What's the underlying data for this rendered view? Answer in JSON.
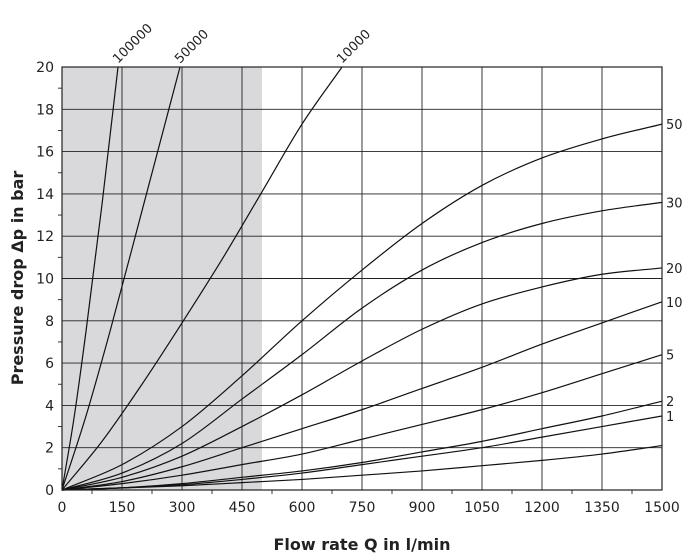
{
  "chart_data": {
    "type": "line",
    "title": "",
    "xlabel": "Flow rate Q in l/min",
    "ylabel": "Pressure drop Δp in bar",
    "xlim": [
      0,
      1500
    ],
    "ylim": [
      0,
      20
    ],
    "x_ticks": [
      0,
      150,
      300,
      450,
      600,
      750,
      900,
      1050,
      1200,
      1350,
      1500
    ],
    "y_ticks": [
      0,
      2,
      4,
      6,
      8,
      10,
      12,
      14,
      16,
      18,
      20
    ],
    "x_tick_labels": [
      "0",
      "150",
      "300",
      "450",
      "600",
      "750",
      "900",
      "1050",
      "1200",
      "1350",
      "1500"
    ],
    "y_tick_labels": [
      "0",
      "2",
      "4",
      "6",
      "8",
      "10",
      "12",
      "14",
      "16",
      "18",
      "20"
    ],
    "grid": true,
    "shaded_region": {
      "x": [
        0,
        500
      ],
      "color": "#d9d9db"
    },
    "colors": {
      "curve": "#111111",
      "grid": "#222222",
      "shade": "#d9d9db"
    },
    "series": [
      {
        "name": "100000",
        "label_position": "top",
        "x": [
          0,
          30,
          60,
          100,
          140
        ],
        "y": [
          0,
          3.4,
          7.5,
          13.5,
          20
        ]
      },
      {
        "name": "50000",
        "label_position": "top",
        "x": [
          0,
          60,
          120,
          200,
          295
        ],
        "y": [
          0,
          3.5,
          7.5,
          13.2,
          20
        ]
      },
      {
        "name": "10000",
        "label_position": "top",
        "x": [
          0,
          100,
          200,
          300,
          400,
          500,
          600,
          700
        ],
        "y": [
          0,
          2.3,
          5.0,
          7.9,
          10.9,
          14.1,
          17.3,
          20
        ]
      },
      {
        "name": "50",
        "label_position": "right",
        "x": [
          0,
          150,
          300,
          450,
          600,
          750,
          900,
          1050,
          1200,
          1350,
          1500
        ],
        "y": [
          0,
          1.2,
          3.0,
          5.4,
          8.0,
          10.4,
          12.6,
          14.4,
          15.7,
          16.6,
          17.3
        ]
      },
      {
        "name": "30",
        "label_position": "right",
        "x": [
          0,
          150,
          300,
          450,
          600,
          750,
          900,
          1050,
          1200,
          1350,
          1500
        ],
        "y": [
          0,
          0.8,
          2.2,
          4.3,
          6.4,
          8.6,
          10.4,
          11.7,
          12.6,
          13.2,
          13.6
        ]
      },
      {
        "name": "20",
        "label_position": "right",
        "x": [
          0,
          150,
          300,
          450,
          600,
          750,
          900,
          1050,
          1200,
          1350,
          1500
        ],
        "y": [
          0,
          0.6,
          1.6,
          3.0,
          4.5,
          6.1,
          7.6,
          8.8,
          9.6,
          10.2,
          10.5
        ]
      },
      {
        "name": "10",
        "label_position": "right",
        "x": [
          0,
          150,
          300,
          450,
          600,
          750,
          900,
          1050,
          1200,
          1350,
          1500
        ],
        "y": [
          0,
          0.4,
          1.1,
          2.0,
          2.9,
          3.8,
          4.8,
          5.8,
          6.9,
          7.9,
          8.9
        ]
      },
      {
        "name": "5",
        "label_position": "right",
        "x": [
          0,
          150,
          300,
          450,
          600,
          750,
          900,
          1050,
          1200,
          1350,
          1500
        ],
        "y": [
          0,
          0.3,
          0.7,
          1.2,
          1.7,
          2.4,
          3.1,
          3.8,
          4.6,
          5.5,
          6.4
        ]
      },
      {
        "name": "2",
        "label_position": "right",
        "x": [
          0,
          150,
          300,
          450,
          600,
          750,
          900,
          1050,
          1200,
          1350,
          1500
        ],
        "y": [
          0,
          0.1,
          0.3,
          0.6,
          0.9,
          1.3,
          1.8,
          2.3,
          2.9,
          3.5,
          4.2
        ]
      },
      {
        "name": "1",
        "label_position": "right",
        "x": [
          0,
          150,
          300,
          450,
          600,
          750,
          900,
          1050,
          1200,
          1350,
          1500
        ],
        "y": [
          0,
          0.1,
          0.25,
          0.5,
          0.8,
          1.2,
          1.6,
          2.0,
          2.5,
          3.0,
          3.5
        ]
      },
      {
        "name": "",
        "label_position": "none",
        "x": [
          0,
          150,
          300,
          450,
          600,
          750,
          900,
          1050,
          1200,
          1350,
          1500
        ],
        "y": [
          0,
          0.1,
          0.2,
          0.35,
          0.5,
          0.7,
          0.9,
          1.15,
          1.4,
          1.7,
          2.1
        ]
      }
    ]
  }
}
